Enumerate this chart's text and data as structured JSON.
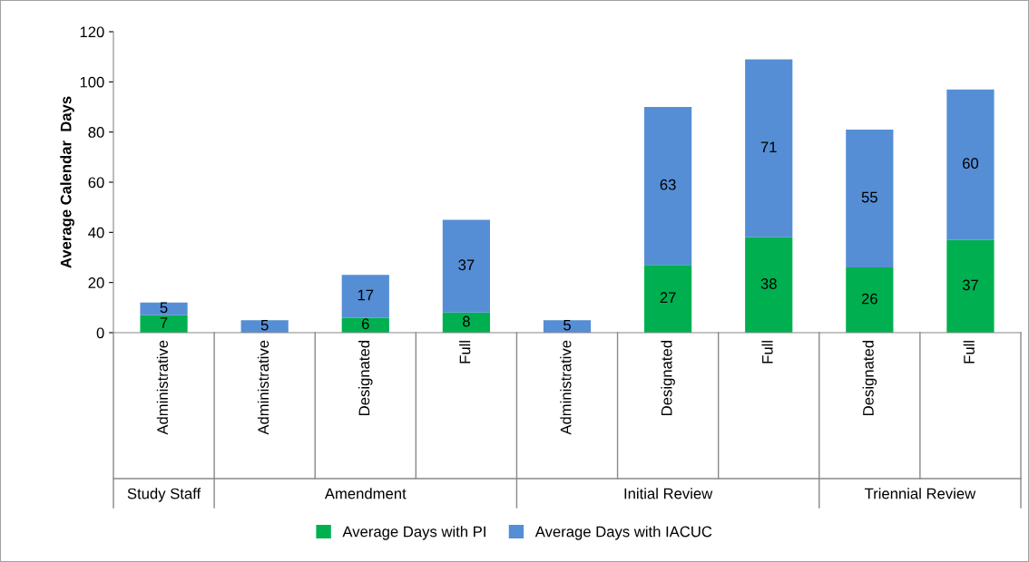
{
  "chart_data": {
    "type": "bar",
    "stacked": true,
    "ylabel": "Average Calendar  Days",
    "categories": [
      "Administrative",
      "Administrative",
      "Designated",
      "Full",
      "Administrative",
      "Designated",
      "Full",
      "Designated",
      "Full"
    ],
    "series": [
      {
        "name": "Average Days with PI",
        "color": "#00b050",
        "values": [
          7,
          null,
          6,
          8,
          null,
          27,
          38,
          26,
          37
        ]
      },
      {
        "name": "Average Days with IACUC",
        "color": "#558ed5",
        "values": [
          5,
          5,
          17,
          37,
          5,
          63,
          71,
          55,
          60
        ]
      }
    ],
    "annotations": [
      "Study Staff",
      "Amendment",
      "Initial Review",
      "Triennial Review"
    ],
    "ylim": [
      0,
      120
    ],
    "yticks": [
      0,
      20,
      40,
      60,
      80,
      100,
      120
    ],
    "grid": false,
    "legend": "bottom",
    "data_labels": true
  }
}
